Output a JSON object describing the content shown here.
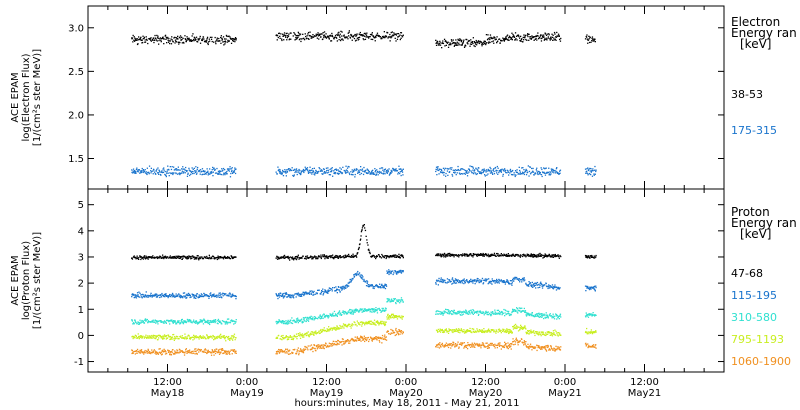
{
  "chart_data": [
    {
      "type": "scatter",
      "ylabel": [
        "ACE EPAM",
        "log(Electron Flux)",
        "[1/(cm²s ster MeV)]"
      ],
      "yticks": [
        1.5,
        2.0,
        2.5,
        3.0
      ],
      "ylim": [
        1.15,
        3.25
      ],
      "legend": {
        "title": [
          "Electron",
          "Energy ran",
          "[keV]"
        ],
        "position": "right"
      },
      "series": [
        {
          "name": "38-53",
          "color": "#000000",
          "level": 2.87,
          "spread": 0.035
        },
        {
          "name": "175-315",
          "color": "#1873cc",
          "level": 1.36,
          "spread": 0.035
        }
      ]
    },
    {
      "type": "scatter",
      "ylabel": [
        "ACE EPAM",
        "log(Proton Flux)",
        "[1/(cm²s ster MeV)]"
      ],
      "yticks": [
        -1,
        0,
        1,
        2,
        3,
        4,
        5
      ],
      "ylim": [
        -1.4,
        5.6
      ],
      "legend": {
        "title": [
          "Proton",
          "Energy ran",
          "[keV]"
        ],
        "position": "right"
      },
      "series": [
        {
          "name": "47-68",
          "color": "#000000",
          "level": 3.0,
          "spread": 0.05
        },
        {
          "name": "115-195",
          "color": "#1873cc",
          "level": 1.55,
          "spread": 0.07
        },
        {
          "name": "310-580",
          "color": "#30e0d0",
          "level": 0.55,
          "spread": 0.07
        },
        {
          "name": "795-1193",
          "color": "#c8ee20",
          "level": -0.05,
          "spread": 0.07
        },
        {
          "name": "1060-1900",
          "color": "#f09020",
          "level": -0.6,
          "spread": 0.08
        }
      ]
    }
  ],
  "x_axis": {
    "range_hours": [
      0,
      96
    ],
    "ticks": [
      {
        "hour": 12,
        "time": "12:00",
        "date": "May18"
      },
      {
        "hour": 24,
        "time": "0:00",
        "date": "May19"
      },
      {
        "hour": 36,
        "time": "12:00",
        "date": "May19"
      },
      {
        "hour": 48,
        "time": "0:00",
        "date": "May20"
      },
      {
        "hour": 60,
        "time": "12:00",
        "date": "May20"
      },
      {
        "hour": 72,
        "time": "0:00",
        "date": "May21"
      },
      {
        "hour": 84,
        "time": "12:00",
        "date": "May21"
      }
    ],
    "label": "hours:minutes, May 18, 2011 - May 21, 2011"
  },
  "data_intervals_hours": [
    [
      6.5,
      22.3
    ],
    [
      28.3,
      47.5
    ],
    [
      52.4,
      71.3
    ],
    [
      75.0,
      76.6
    ]
  ]
}
